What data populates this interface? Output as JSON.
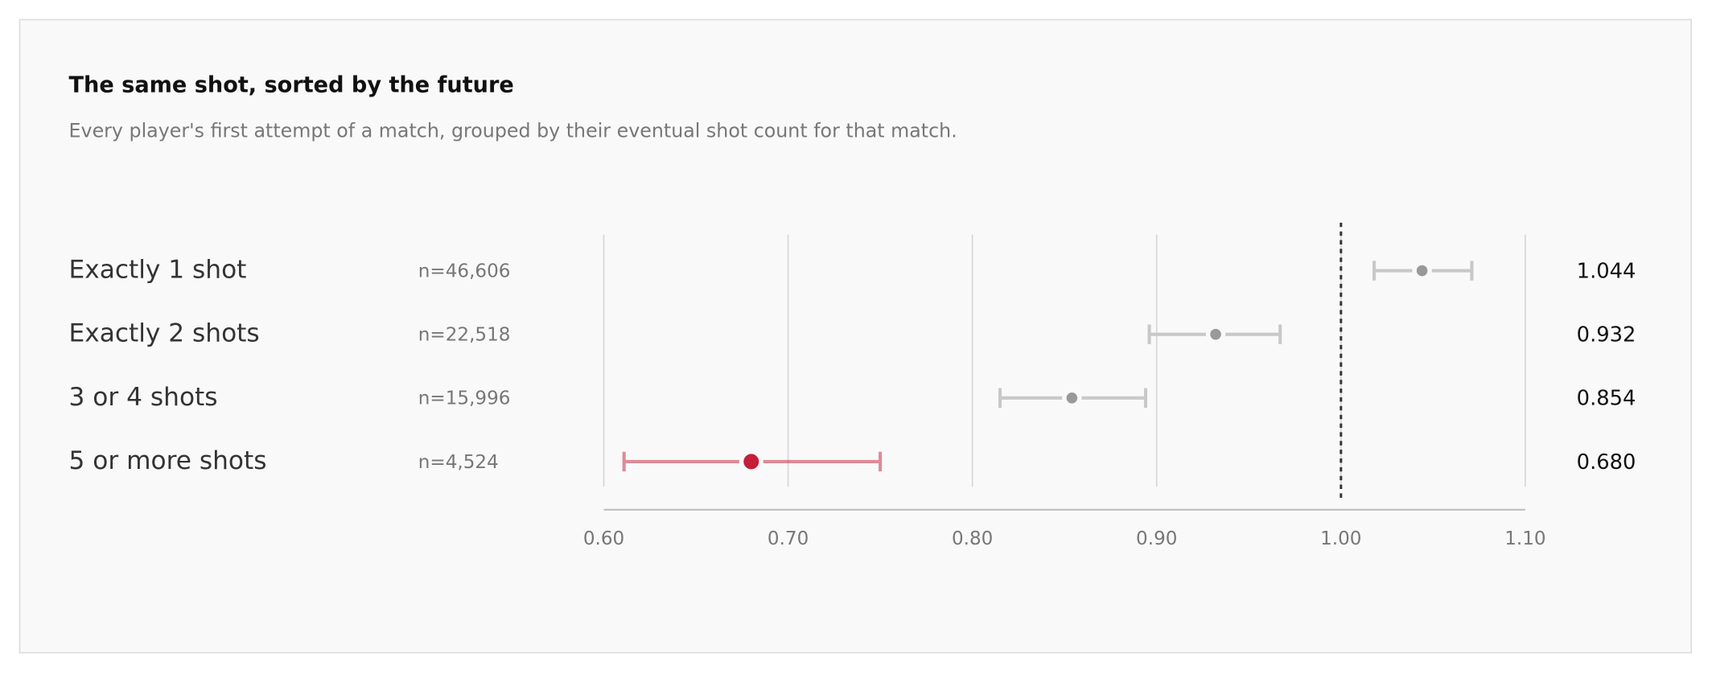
{
  "chart_data": {
    "type": "dot-errorbar",
    "title": "The same shot, sorted by the future",
    "subtitle": "Every player's first attempt of a match, grouped by their eventual shot count for that match.",
    "categories": [
      "Exactly 1 shot",
      "Exactly 2 shots",
      "3 or 4 shots",
      "5 or more shots"
    ],
    "n_labels": [
      "n=46,606",
      "n=22,518",
      "n=15,996",
      "n=4,524"
    ],
    "values": [
      1.044,
      0.932,
      0.854,
      0.68
    ],
    "value_labels": [
      "1.044",
      "0.932",
      "0.854",
      "0.680"
    ],
    "ci_low": [
      1.018,
      0.896,
      0.815,
      0.611
    ],
    "ci_high": [
      1.071,
      0.967,
      0.894,
      0.75
    ],
    "colors": [
      "#999999",
      "#999999",
      "#999999",
      "#c41e3a"
    ],
    "reference": 1,
    "xlim": [
      0.6,
      1.1
    ],
    "xticks": [
      {
        "value": 0.6,
        "label": "0.60"
      },
      {
        "value": 0.7,
        "label": "0.70"
      },
      {
        "value": 0.8,
        "label": "0.80"
      },
      {
        "value": 0.9,
        "label": "0.90"
      },
      {
        "value": 1,
        "label": "1.00"
      },
      {
        "value": 1.1,
        "label": "1.10"
      }
    ],
    "grid": true
  }
}
